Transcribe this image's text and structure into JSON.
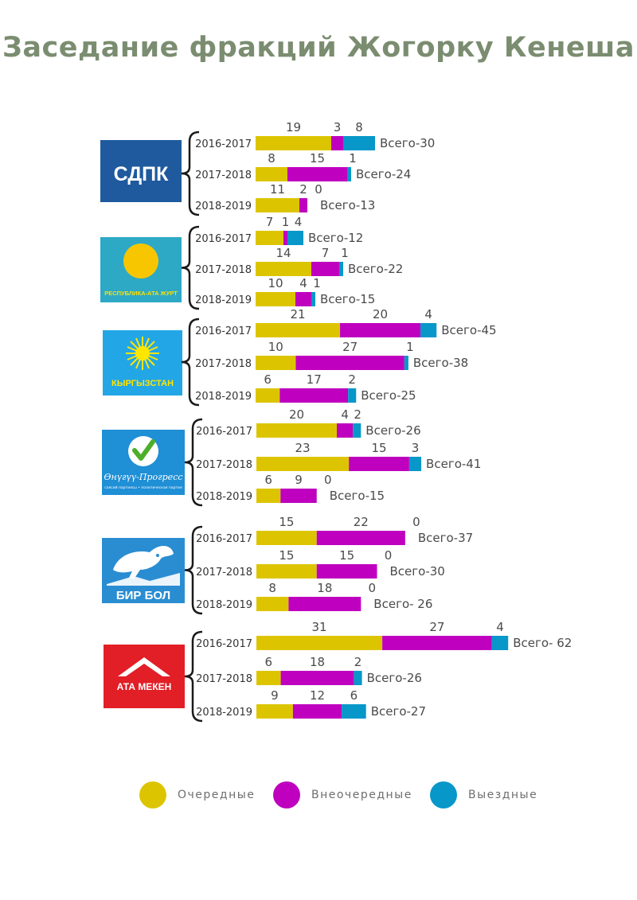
{
  "title": "Заседание фракций Жогорку Кенеша",
  "colors": {
    "regular": "#dcc500",
    "extraordinary": "#bf00bf",
    "offsite": "#0797c9"
  },
  "logos": [
    {
      "text": "СДПК"
    },
    {
      "text": "РЕСПУБЛИКА-АТА ЖУРТ"
    },
    {
      "text": "КЫРГЫЗСТАН"
    },
    {
      "text": "Өнүгүү-Прогресс",
      "subtext": "саясий партиясы • политическая партия"
    },
    {
      "text": "БИР БОЛ"
    },
    {
      "text": "АТА МЕКЕН"
    }
  ],
  "legend": [
    {
      "key": "regular",
      "label": "Очередные"
    },
    {
      "key": "extraordinary",
      "label": "Внеочередные"
    },
    {
      "key": "offsite",
      "label": "Выездные"
    }
  ],
  "chart_data": {
    "type": "bar",
    "stacked": true,
    "orientation": "horizontal",
    "series_names": [
      "Очередные",
      "Внеочередные",
      "Выездные"
    ],
    "groups": [
      {
        "logo": "СДПК",
        "rows": [
          {
            "year": "2016-2017",
            "values": [
              19,
              3,
              8
            ],
            "total_label": "Всего-30"
          },
          {
            "year": "2017-2018",
            "values": [
              8,
              15,
              1
            ],
            "total_label": "Всего-24"
          },
          {
            "year": "2018-2019",
            "values": [
              11,
              2,
              0
            ],
            "total_label": "Всего-13"
          }
        ]
      },
      {
        "logo": "РЕСПУБЛИКА-АТА ЖУРТ",
        "rows": [
          {
            "year": "2016-2017",
            "values": [
              7,
              1,
              4
            ],
            "total_label": "Всего-12"
          },
          {
            "year": "2017-2018",
            "values": [
              14,
              7,
              1
            ],
            "total_label": "Всего-22"
          },
          {
            "year": "2018-2019",
            "values": [
              10,
              4,
              1
            ],
            "total_label": "Всего-15"
          }
        ]
      },
      {
        "logo": "КЫРГЫЗСТАН",
        "rows": [
          {
            "year": "2016-2017",
            "values": [
              21,
              20,
              4
            ],
            "total_label": "Всего-45"
          },
          {
            "year": "2017-2018",
            "values": [
              10,
              27,
              1
            ],
            "total_label": "Всего-38"
          },
          {
            "year": "2018-2019",
            "values": [
              6,
              17,
              2
            ],
            "total_label": "Всего-25"
          }
        ]
      },
      {
        "logo": "Өнүгүү-Прогресс",
        "rows": [
          {
            "year": "2016-2017",
            "values": [
              20,
              4,
              2
            ],
            "total_label": "Всего-26"
          },
          {
            "year": "2017-2018",
            "values": [
              23,
              15,
              3
            ],
            "total_label": "Всего-41"
          },
          {
            "year": "2018-2019",
            "values": [
              6,
              9,
              0
            ],
            "total_label": "Всего-15"
          }
        ]
      },
      {
        "logo": "БИР БОЛ",
        "rows": [
          {
            "year": "2016-2017",
            "values": [
              15,
              22,
              0
            ],
            "total_label": "Всего-37"
          },
          {
            "year": "2017-2018",
            "values": [
              15,
              15,
              0
            ],
            "total_label": "Всего-30"
          },
          {
            "year": "2018-2019",
            "values": [
              8,
              18,
              0
            ],
            "total_label": "Всего- 26"
          }
        ]
      },
      {
        "logo": "АТА МЕКЕН",
        "rows": [
          {
            "year": "2016-2017",
            "values": [
              31,
              27,
              4
            ],
            "total_label": "Всего- 62"
          },
          {
            "year": "2017-2018",
            "values": [
              6,
              18,
              2
            ],
            "total_label": "Всего-26"
          },
          {
            "year": "2018-2019",
            "values": [
              9,
              12,
              6
            ],
            "total_label": "Всего-27"
          }
        ]
      }
    ]
  }
}
